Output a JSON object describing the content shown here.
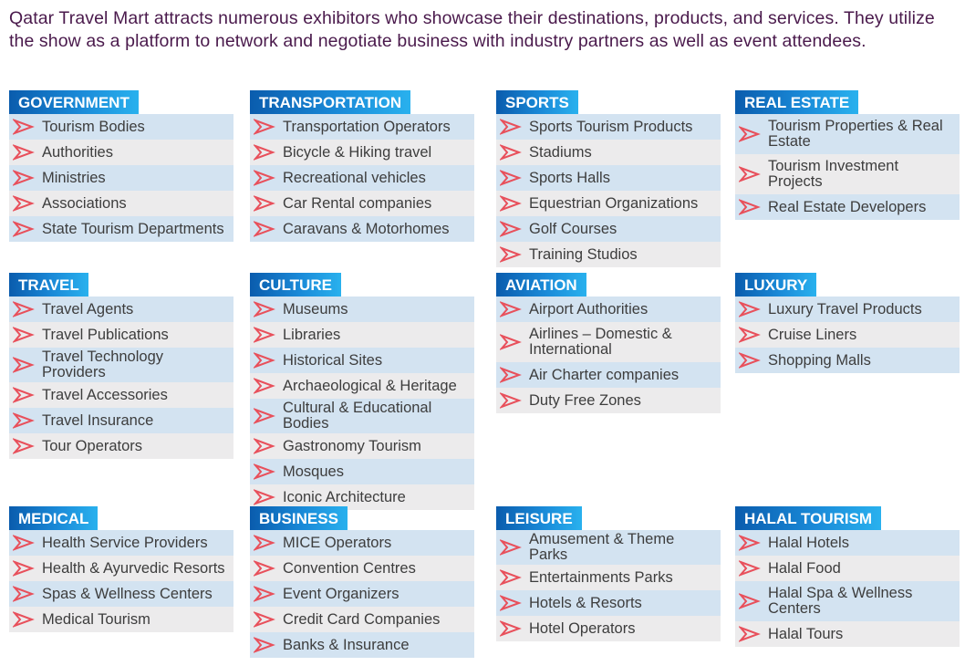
{
  "intro": "Qatar Travel Mart attracts numerous exhibitors who showcase their destinations, products, and services. They utilize the show as a platform to network and negotiate business with industry partners as well as event attendees.",
  "colors": {
    "title_bar_start": "#0a5cad",
    "title_bar_end": "#29b1ee",
    "arrow": "#e8505b",
    "row_blue": "#d3e3f1",
    "row_grey": "#ecebec",
    "intro_text": "#4a1a4c"
  },
  "icon": "chevron-arrow-icon",
  "categories": [
    {
      "title": "GOVERNMENT",
      "items": [
        "Tourism Bodies",
        "Authorities",
        "Ministries",
        "Associations",
        "State Tourism Departments"
      ]
    },
    {
      "title": "TRANSPORTATION",
      "items": [
        "Transportation Operators",
        "Bicycle & Hiking travel",
        "Recreational vehicles",
        "Car Rental companies",
        "Caravans & Motorhomes"
      ]
    },
    {
      "title": "SPORTS",
      "items": [
        "Sports Tourism Products",
        "Stadiums",
        "Sports Halls",
        "Equestrian Organizations",
        "Golf Courses",
        "Training Studios"
      ]
    },
    {
      "title": "REAL ESTATE",
      "items": [
        "Tourism Properties & Real Estate",
        "Tourism Investment Projects",
        "Real Estate Developers"
      ]
    },
    {
      "title": "TRAVEL",
      "items": [
        "Travel Agents",
        "Travel Publications",
        "Travel Technology Providers",
        "Travel Accessories",
        "Travel Insurance",
        "Tour Operators"
      ]
    },
    {
      "title": "CULTURE",
      "items": [
        "Museums",
        "Libraries",
        "Historical Sites",
        "Archaeological & Heritage",
        "Cultural & Educational Bodies",
        "Gastronomy Tourism",
        "Mosques",
        "Iconic Architecture"
      ]
    },
    {
      "title": "AVIATION",
      "items": [
        "Airport Authorities",
        "Airlines – Domestic & International",
        "Air Charter companies",
        "Duty Free Zones"
      ]
    },
    {
      "title": "LUXURY",
      "items": [
        "Luxury Travel Products",
        "Cruise Liners",
        "Shopping Malls"
      ]
    },
    {
      "title": "MEDICAL",
      "items": [
        "Health Service Providers",
        "Health & Ayurvedic Resorts",
        "Spas & Wellness Centers",
        "Medical Tourism"
      ]
    },
    {
      "title": "BUSINESS",
      "items": [
        "MICE Operators",
        "Convention Centres",
        "Event Organizers",
        "Credit Card Companies",
        "Banks & Insurance"
      ]
    },
    {
      "title": "LEISURE",
      "items": [
        "Amusement & Theme Parks",
        "Entertainments Parks",
        "Hotels & Resorts",
        "Hotel Operators"
      ]
    },
    {
      "title": "HALAL TOURISM",
      "items": [
        "Halal Hotels",
        "Halal Food",
        "Halal Spa & Wellness Centers",
        "Halal Tours"
      ]
    }
  ]
}
